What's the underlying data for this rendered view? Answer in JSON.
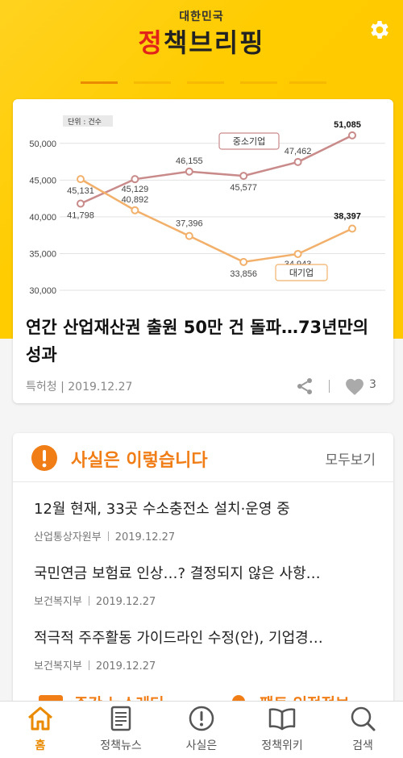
{
  "header": {
    "logo_small": "대한민국",
    "logo_big_part1": "정",
    "logo_big_part2": "책브리핑",
    "settings_icon": "gear-icon"
  },
  "carousel": {
    "count": 5,
    "active_index": 0
  },
  "main_article": {
    "title": "연간 산업재산권 출원 50만 건 돌파…73년만의 성과",
    "source": "특허청",
    "date": "2019.12.27",
    "likes": "3"
  },
  "chart_data": {
    "type": "line",
    "unit_note": "단위 : 건수",
    "y_ticks": [
      "50,000",
      "45,000",
      "40,000",
      "35,000",
      "30,000"
    ],
    "ylim": [
      30000,
      52500
    ],
    "series": [
      {
        "name": "중소기업",
        "color": "#c98a8a",
        "values": [
          41798,
          45129,
          46155,
          45577,
          47462,
          51085
        ],
        "labels": [
          "41,798",
          "45,129",
          "46,155",
          "45,577",
          "47,462",
          "51,085"
        ]
      },
      {
        "name": "대기업",
        "color": "#f2b06b",
        "values": [
          45131,
          40892,
          37396,
          33856,
          34943,
          38397
        ],
        "labels": [
          "45,131",
          "40,892",
          "37,396",
          "33,856",
          "34,943",
          "38,397"
        ]
      }
    ]
  },
  "facts": {
    "title": "사실은 이렇습니다",
    "more": "모두보기",
    "items": [
      {
        "title": "12월 현재, 33곳 수소충전소 설치·운영 중",
        "source": "산업통상자원부",
        "date": "2019.12.27"
      },
      {
        "title": "국민연금 보험료 인상…? 결정되지 않은 사항…",
        "source": "보건복지부",
        "date": "2019.12.27"
      },
      {
        "title": "적극적 주주활동 가이드라인 수정(안), 기업경…",
        "source": "보건복지부",
        "date": "2019.12.27"
      }
    ]
  },
  "peek": {
    "left": "주간 뉴스레터",
    "right": "팩트 인정정보"
  },
  "nav": [
    {
      "label": "홈",
      "icon": "home-icon"
    },
    {
      "label": "정책뉴스",
      "icon": "news-icon"
    },
    {
      "label": "사실은",
      "icon": "alert-icon"
    },
    {
      "label": "정책위키",
      "icon": "book-icon"
    },
    {
      "label": "검색",
      "icon": "search-icon"
    }
  ]
}
